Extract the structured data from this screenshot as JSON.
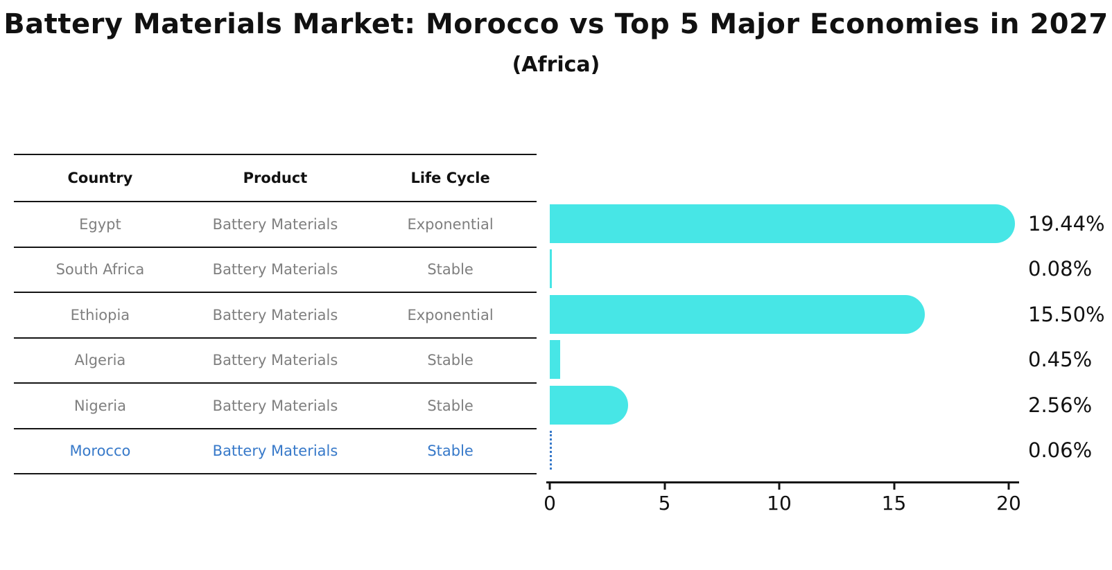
{
  "title": "Battery Materials Market: Morocco vs Top 5 Major Economies in 2027",
  "subtitle": "(Africa)",
  "colors": {
    "bar": "#47E6E6",
    "highlight": "#3779C9",
    "table_text": "#7f7f7f",
    "line": "#141414",
    "text": "#111111"
  },
  "table": {
    "headers": [
      "Country",
      "Product",
      "Life Cycle"
    ],
    "rows": [
      {
        "country": "Egypt",
        "product": "Battery Materials",
        "life_cycle": "Exponential",
        "highlight": false
      },
      {
        "country": "South Africa",
        "product": "Battery Materials",
        "life_cycle": "Stable",
        "highlight": false
      },
      {
        "country": "Ethiopia",
        "product": "Battery Materials",
        "life_cycle": "Exponential",
        "highlight": false
      },
      {
        "country": "Algeria",
        "product": "Battery Materials",
        "life_cycle": "Stable",
        "highlight": false
      },
      {
        "country": "Nigeria",
        "product": "Battery Materials",
        "life_cycle": "Stable",
        "highlight": false
      },
      {
        "country": "Morocco",
        "product": "Battery Materials",
        "life_cycle": "Stable",
        "highlight": true
      }
    ]
  },
  "chart_data": {
    "type": "bar",
    "orientation": "horizontal",
    "title": "Battery Materials Market: Morocco vs Top 5 Major Economies in 2027",
    "subtitle": "(Africa)",
    "categories": [
      "Egypt",
      "South Africa",
      "Ethiopia",
      "Algeria",
      "Nigeria",
      "Morocco"
    ],
    "values": [
      19.44,
      0.08,
      15.5,
      0.45,
      2.56,
      0.06
    ],
    "labels": [
      "19.44%",
      "0.08%",
      "15.50%",
      "0.45%",
      "2.56%",
      "0.06%"
    ],
    "bar_styles": [
      "round-cap",
      "plain",
      "round-cap",
      "plain",
      "round-cap",
      "dashed"
    ],
    "bar_color": "#47E6E6",
    "highlight_color": "#3779C9",
    "xlim": [
      0,
      20
    ],
    "xticks": [
      0,
      5,
      10,
      15,
      20
    ],
    "xtick_labels": [
      "0",
      "5",
      "10",
      "15",
      "20"
    ],
    "grid": false,
    "legend": false,
    "value_suffix": "%"
  }
}
